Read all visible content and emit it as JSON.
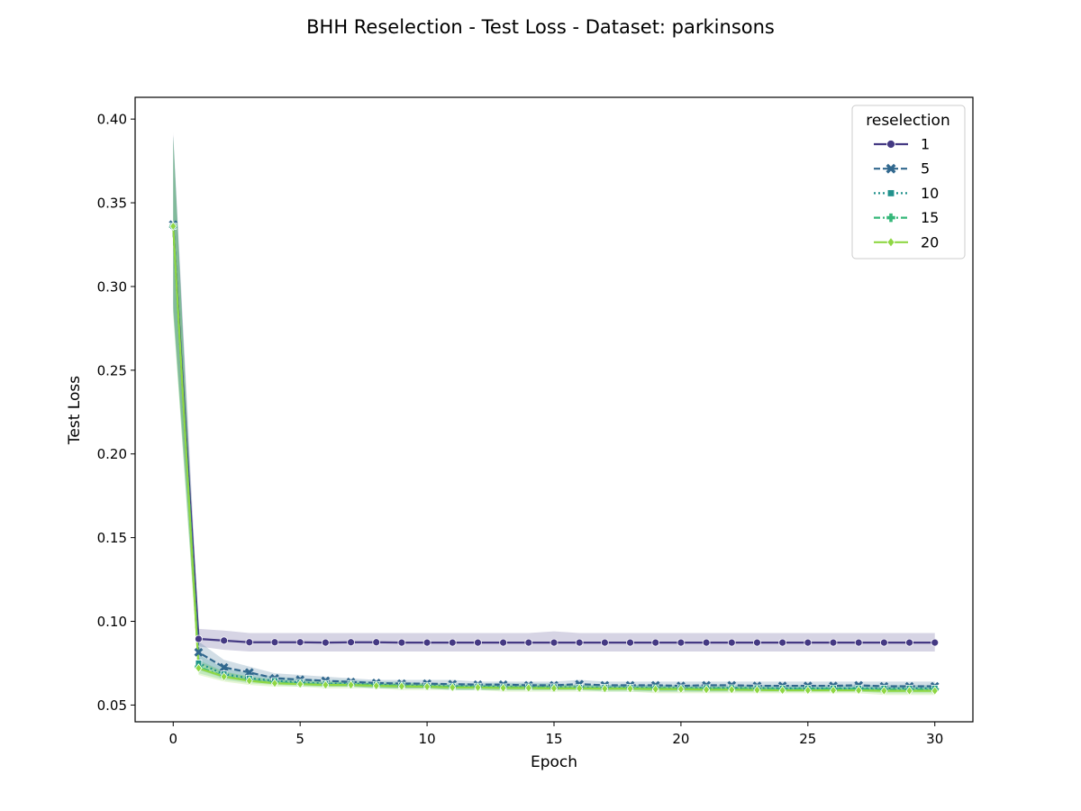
{
  "chart_data": {
    "type": "line",
    "title": "BHH Reselection - Test Loss - Dataset: parkinsons",
    "xlabel": "Epoch",
    "ylabel": "Test Loss",
    "xlim": [
      -1.5,
      31.5
    ],
    "ylim": [
      0.04,
      0.413
    ],
    "xticks": [
      0,
      5,
      10,
      15,
      20,
      25,
      30
    ],
    "yticks": [
      0.05,
      0.1,
      0.15,
      0.2,
      0.25,
      0.3,
      0.35,
      0.4
    ],
    "xtick_labels": [
      "0",
      "5",
      "10",
      "15",
      "20",
      "25",
      "30"
    ],
    "ytick_labels": [
      "0.05",
      "0.10",
      "0.15",
      "0.20",
      "0.25",
      "0.30",
      "0.35",
      "0.40"
    ],
    "grid": false,
    "legend": {
      "title": "reselection",
      "placement": "top-right"
    },
    "x": [
      0,
      1,
      2,
      3,
      4,
      5,
      6,
      7,
      8,
      9,
      10,
      11,
      12,
      13,
      14,
      15,
      16,
      17,
      18,
      19,
      20,
      21,
      22,
      23,
      24,
      25,
      26,
      27,
      28,
      29,
      30
    ],
    "series": [
      {
        "name": "1",
        "color": "#443983",
        "marker": "circle",
        "dash": "solid",
        "values": [
          0.336,
          0.0895,
          0.0885,
          0.0875,
          0.0875,
          0.0875,
          0.0873,
          0.0875,
          0.0875,
          0.0873,
          0.0873,
          0.0873,
          0.0873,
          0.0873,
          0.0873,
          0.0873,
          0.0873,
          0.0873,
          0.0873,
          0.0873,
          0.0873,
          0.0873,
          0.0873,
          0.0873,
          0.0873,
          0.0873,
          0.0873,
          0.0873,
          0.0873,
          0.0873,
          0.0873
        ],
        "ci_lower": [
          0.287,
          0.085,
          0.083,
          0.082,
          0.082,
          0.082,
          0.082,
          0.082,
          0.082,
          0.082,
          0.082,
          0.082,
          0.082,
          0.082,
          0.082,
          0.082,
          0.082,
          0.082,
          0.082,
          0.082,
          0.082,
          0.082,
          0.082,
          0.082,
          0.082,
          0.082,
          0.082,
          0.082,
          0.082,
          0.082,
          0.082
        ],
        "ci_upper": [
          0.392,
          0.0955,
          0.0945,
          0.093,
          0.093,
          0.093,
          0.093,
          0.093,
          0.093,
          0.093,
          0.093,
          0.093,
          0.093,
          0.093,
          0.093,
          0.094,
          0.093,
          0.093,
          0.093,
          0.093,
          0.093,
          0.093,
          0.093,
          0.093,
          0.093,
          0.093,
          0.093,
          0.093,
          0.093,
          0.093,
          0.093
        ]
      },
      {
        "name": "5",
        "color": "#31688e",
        "marker": "x",
        "dash": "dashed",
        "values": [
          0.337,
          0.0815,
          0.0725,
          0.0695,
          0.066,
          0.0652,
          0.0645,
          0.0638,
          0.0632,
          0.0628,
          0.0628,
          0.0625,
          0.0622,
          0.0622,
          0.0618,
          0.0618,
          0.0625,
          0.0618,
          0.0618,
          0.0618,
          0.0615,
          0.0618,
          0.0618,
          0.0615,
          0.0615,
          0.0615,
          0.0615,
          0.0618,
          0.0612,
          0.0612,
          0.0612
        ],
        "ci_lower": [
          0.29,
          0.075,
          0.068,
          0.065,
          0.063,
          0.062,
          0.062,
          0.061,
          0.061,
          0.06,
          0.06,
          0.06,
          0.06,
          0.06,
          0.06,
          0.06,
          0.06,
          0.06,
          0.06,
          0.06,
          0.059,
          0.06,
          0.06,
          0.059,
          0.059,
          0.059,
          0.059,
          0.059,
          0.059,
          0.059,
          0.059
        ],
        "ci_upper": [
          0.39,
          0.088,
          0.077,
          0.073,
          0.069,
          0.068,
          0.067,
          0.066,
          0.065,
          0.065,
          0.065,
          0.065,
          0.064,
          0.064,
          0.064,
          0.064,
          0.065,
          0.064,
          0.064,
          0.064,
          0.064,
          0.064,
          0.064,
          0.064,
          0.064,
          0.064,
          0.064,
          0.064,
          0.064,
          0.064,
          0.064
        ]
      },
      {
        "name": "10",
        "color": "#21918c",
        "marker": "square",
        "dash": "dotted",
        "values": [
          0.336,
          0.075,
          0.0685,
          0.066,
          0.0645,
          0.0635,
          0.0628,
          0.0628,
          0.0622,
          0.0618,
          0.0615,
          0.0612,
          0.0612,
          0.0608,
          0.0608,
          0.0608,
          0.0605,
          0.0605,
          0.0605,
          0.0602,
          0.0602,
          0.0602,
          0.0602,
          0.0602,
          0.06,
          0.06,
          0.06,
          0.06,
          0.06,
          0.06,
          0.06
        ],
        "ci_lower": [
          0.285,
          0.071,
          0.066,
          0.064,
          0.063,
          0.062,
          0.061,
          0.061,
          0.06,
          0.06,
          0.06,
          0.059,
          0.059,
          0.059,
          0.059,
          0.059,
          0.059,
          0.059,
          0.059,
          0.058,
          0.058,
          0.058,
          0.058,
          0.058,
          0.058,
          0.058,
          0.058,
          0.058,
          0.058,
          0.058,
          0.058
        ],
        "ci_upper": [
          0.39,
          0.08,
          0.072,
          0.069,
          0.067,
          0.066,
          0.065,
          0.065,
          0.064,
          0.064,
          0.063,
          0.063,
          0.063,
          0.063,
          0.063,
          0.063,
          0.062,
          0.062,
          0.062,
          0.062,
          0.062,
          0.062,
          0.062,
          0.062,
          0.062,
          0.062,
          0.062,
          0.062,
          0.062,
          0.062,
          0.062
        ]
      },
      {
        "name": "15",
        "color": "#35b779",
        "marker": "plus",
        "dash": "dashdot",
        "values": [
          0.336,
          0.0728,
          0.0672,
          0.0648,
          0.0635,
          0.0628,
          0.0622,
          0.0622,
          0.0618,
          0.0615,
          0.0612,
          0.0608,
          0.0608,
          0.0605,
          0.0605,
          0.0602,
          0.0602,
          0.06,
          0.06,
          0.06,
          0.0598,
          0.0598,
          0.0598,
          0.0595,
          0.0595,
          0.0595,
          0.0595,
          0.0595,
          0.0592,
          0.0592,
          0.0592
        ],
        "ci_lower": [
          0.285,
          0.069,
          0.065,
          0.063,
          0.062,
          0.061,
          0.061,
          0.061,
          0.06,
          0.06,
          0.06,
          0.059,
          0.059,
          0.059,
          0.059,
          0.059,
          0.059,
          0.058,
          0.058,
          0.058,
          0.058,
          0.058,
          0.058,
          0.058,
          0.058,
          0.058,
          0.058,
          0.058,
          0.057,
          0.057,
          0.057
        ],
        "ci_upper": [
          0.39,
          0.077,
          0.07,
          0.067,
          0.065,
          0.065,
          0.064,
          0.064,
          0.063,
          0.063,
          0.063,
          0.062,
          0.062,
          0.062,
          0.062,
          0.062,
          0.062,
          0.062,
          0.062,
          0.062,
          0.061,
          0.061,
          0.061,
          0.061,
          0.061,
          0.061,
          0.061,
          0.061,
          0.061,
          0.061,
          0.061
        ]
      },
      {
        "name": "20",
        "color": "#8fd744",
        "marker": "diamond",
        "dash": "solid",
        "values": [
          0.336,
          0.072,
          0.067,
          0.0645,
          0.063,
          0.0625,
          0.062,
          0.062,
          0.0615,
          0.0612,
          0.061,
          0.0605,
          0.0605,
          0.0602,
          0.0602,
          0.06,
          0.06,
          0.0598,
          0.0598,
          0.0595,
          0.0595,
          0.0592,
          0.0592,
          0.059,
          0.0588,
          0.0588,
          0.0588,
          0.0588,
          0.0585,
          0.0585,
          0.0585
        ],
        "ci_lower": [
          0.283,
          0.068,
          0.064,
          0.062,
          0.061,
          0.061,
          0.06,
          0.06,
          0.06,
          0.059,
          0.059,
          0.059,
          0.059,
          0.058,
          0.058,
          0.058,
          0.058,
          0.058,
          0.058,
          0.057,
          0.057,
          0.057,
          0.057,
          0.057,
          0.057,
          0.057,
          0.057,
          0.057,
          0.056,
          0.056,
          0.056
        ],
        "ci_upper": [
          0.39,
          0.076,
          0.07,
          0.067,
          0.065,
          0.064,
          0.064,
          0.064,
          0.063,
          0.063,
          0.063,
          0.062,
          0.062,
          0.062,
          0.062,
          0.062,
          0.062,
          0.061,
          0.061,
          0.061,
          0.061,
          0.061,
          0.061,
          0.061,
          0.06,
          0.06,
          0.06,
          0.06,
          0.06,
          0.06,
          0.06
        ]
      }
    ]
  }
}
